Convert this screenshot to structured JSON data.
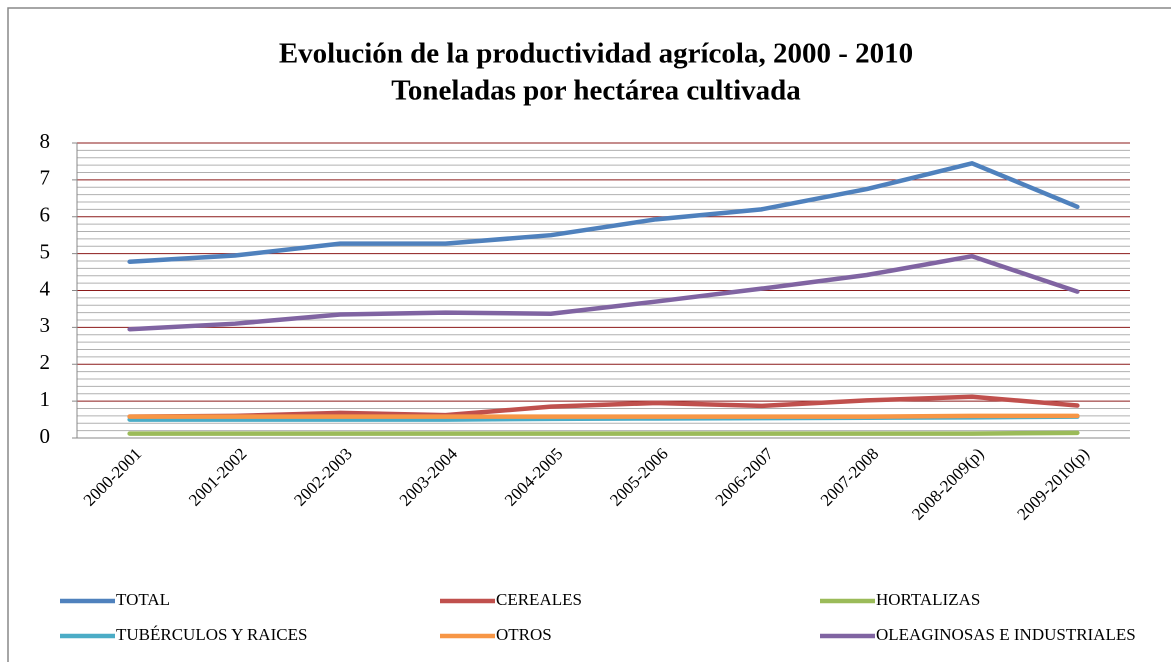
{
  "chart_data": {
    "type": "line",
    "title": "Evolución de la productividad agrícola, 2000 - 2010",
    "subtitle": "Toneladas por hectárea cultivada",
    "categories": [
      "2000-2001",
      "2001-2002",
      "2002-2003",
      "2003-2004",
      "2004-2005",
      "2005-2006",
      "2006-2007",
      "2007-2008",
      "2008-2009(p)",
      "2009-2010(p)"
    ],
    "series": [
      {
        "name": "TOTAL",
        "color": "#4f81bd",
        "values": [
          4.78,
          4.95,
          5.27,
          5.27,
          5.5,
          5.93,
          6.2,
          6.75,
          7.45,
          6.27
        ]
      },
      {
        "name": "CEREALES",
        "color": "#c0504d",
        "values": [
          0.58,
          0.6,
          0.68,
          0.62,
          0.85,
          0.95,
          0.87,
          1.02,
          1.12,
          0.88
        ]
      },
      {
        "name": "HORTALIZAS",
        "color": "#9bbb59",
        "values": [
          0.12,
          0.12,
          0.12,
          0.12,
          0.12,
          0.12,
          0.12,
          0.12,
          0.12,
          0.14
        ]
      },
      {
        "name": "TUBÉRCULOS Y RAICES",
        "color": "#4bacc6",
        "values": [
          0.5,
          0.5,
          0.5,
          0.5,
          0.52,
          0.53,
          0.54,
          0.55,
          0.56,
          0.58
        ]
      },
      {
        "name": "OTROS",
        "color": "#f79646",
        "values": [
          0.58,
          0.58,
          0.58,
          0.58,
          0.58,
          0.58,
          0.58,
          0.58,
          0.6,
          0.6
        ]
      },
      {
        "name": "OLEAGINOSAS E INDUSTRIALES",
        "color": "#8064a2",
        "values": [
          2.95,
          3.1,
          3.35,
          3.4,
          3.37,
          3.7,
          4.05,
          4.42,
          4.93,
          3.97
        ]
      }
    ],
    "ylim": [
      0,
      8
    ],
    "yticks": [
      0,
      1,
      2,
      3,
      4,
      5,
      6,
      7,
      8
    ],
    "yminorticks": [
      0.2,
      0.4,
      0.6,
      0.8,
      1.2,
      1.4,
      1.6,
      1.8,
      2.2,
      2.4,
      2.6,
      2.8,
      3.2,
      3.4,
      3.6,
      3.8,
      4.2,
      4.4,
      4.6,
      4.8,
      5.2,
      5.4,
      5.6,
      5.8,
      6.2,
      6.4,
      6.6,
      6.8,
      7.2,
      7.4,
      7.6,
      7.8
    ],
    "grid": true,
    "legend": "bottom"
  }
}
